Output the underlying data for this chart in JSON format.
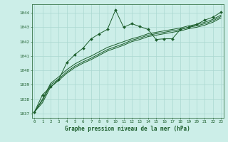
{
  "xlabel": "Graphe pression niveau de la mer (hPa)",
  "background_color": "#cceee8",
  "grid_color": "#aad8d0",
  "line_color": "#1a5c2a",
  "marker_color": "#1a5c2a",
  "xlim": [
    -0.3,
    23.3
  ],
  "ylim": [
    1036.7,
    1044.6
  ],
  "yticks": [
    1037,
    1038,
    1039,
    1040,
    1041,
    1042,
    1043,
    1044
  ],
  "xticks": [
    0,
    1,
    2,
    3,
    4,
    5,
    6,
    7,
    8,
    9,
    10,
    11,
    12,
    13,
    14,
    15,
    16,
    17,
    18,
    19,
    20,
    21,
    22,
    23
  ],
  "series1_x": [
    0,
    1,
    2,
    3,
    4,
    5,
    6,
    7,
    8,
    9,
    10,
    11,
    12,
    13,
    14,
    15,
    16,
    17,
    18,
    19,
    20,
    21,
    22,
    23
  ],
  "series1_y": [
    1037.1,
    1038.3,
    1038.85,
    1039.35,
    1040.55,
    1041.1,
    1041.55,
    1042.2,
    1042.55,
    1042.85,
    1044.2,
    1043.0,
    1043.25,
    1043.05,
    1042.85,
    1042.15,
    1042.2,
    1042.2,
    1042.85,
    1043.0,
    1043.2,
    1043.5,
    1043.7,
    1044.05
  ],
  "series2_x": [
    0,
    1,
    2,
    3,
    4,
    5,
    6,
    7,
    8,
    9,
    10,
    11,
    12,
    13,
    14,
    15,
    16,
    17,
    18,
    19,
    20,
    21,
    22,
    23
  ],
  "series2_y": [
    1037.1,
    1037.9,
    1039.0,
    1039.4,
    1039.9,
    1040.3,
    1040.6,
    1040.85,
    1041.15,
    1041.45,
    1041.65,
    1041.85,
    1042.1,
    1042.25,
    1042.45,
    1042.55,
    1042.65,
    1042.75,
    1042.85,
    1043.0,
    1043.1,
    1043.25,
    1043.45,
    1043.75
  ],
  "series3_x": [
    0,
    1,
    2,
    3,
    4,
    5,
    6,
    7,
    8,
    9,
    10,
    11,
    12,
    13,
    14,
    15,
    16,
    17,
    18,
    19,
    20,
    21,
    22,
    23
  ],
  "series3_y": [
    1037.1,
    1038.0,
    1039.1,
    1039.55,
    1040.05,
    1040.45,
    1040.75,
    1041.0,
    1041.3,
    1041.6,
    1041.8,
    1042.0,
    1042.2,
    1042.35,
    1042.55,
    1042.65,
    1042.75,
    1042.85,
    1042.95,
    1043.1,
    1043.2,
    1043.35,
    1043.55,
    1043.85
  ],
  "series4_x": [
    0,
    1,
    2,
    3,
    4,
    5,
    6,
    7,
    8,
    9,
    10,
    11,
    12,
    13,
    14,
    15,
    16,
    17,
    18,
    19,
    20,
    21,
    22,
    23
  ],
  "series4_y": [
    1037.1,
    1037.75,
    1038.85,
    1039.3,
    1039.8,
    1040.2,
    1040.5,
    1040.75,
    1041.05,
    1041.35,
    1041.55,
    1041.75,
    1042.0,
    1042.15,
    1042.35,
    1042.45,
    1042.55,
    1042.65,
    1042.75,
    1042.9,
    1043.0,
    1043.15,
    1043.35,
    1043.65
  ]
}
